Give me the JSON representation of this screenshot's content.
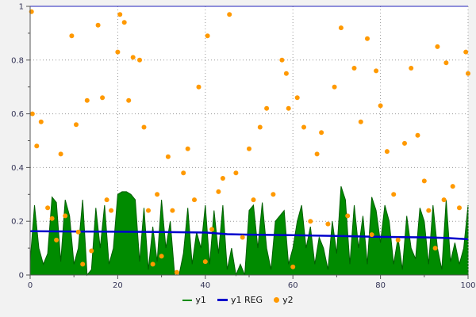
{
  "chart_data": {
    "type": "combo",
    "title": "",
    "xlabel": "",
    "ylabel": "",
    "xlim": [
      0,
      100
    ],
    "ylim": [
      0,
      1
    ],
    "x_ticks": [
      0,
      20,
      40,
      60,
      80,
      100
    ],
    "x_tick_labels": [
      "0",
      "20",
      "40",
      "60",
      "80",
      "100"
    ],
    "y_ticks": [
      0,
      0.2,
      0.4,
      0.6,
      0.8,
      1
    ],
    "y_tick_labels": [
      "0",
      "0.2",
      "0.4",
      "0.6",
      "0.8",
      "1"
    ],
    "grid": true,
    "legend_position": "bottom-center",
    "colors": {
      "page_background": "#f2f2f2",
      "plot_background": "#ffffff",
      "grid": "#999999",
      "axis": "#555555",
      "top_border": "#2222bb",
      "text": "#333355",
      "y1": "#008b00",
      "y1_stroke": "#005f00",
      "y1_reg": "#0000cc",
      "y2": "#ff9900"
    },
    "series": [
      {
        "name": "y1",
        "type": "area",
        "x_start": 0,
        "x_step": 1,
        "values": [
          0.05,
          0.26,
          0.1,
          0.04,
          0.08,
          0.29,
          0.27,
          0.05,
          0.28,
          0.22,
          0.04,
          0.1,
          0.28,
          0.0,
          0.02,
          0.25,
          0.1,
          0.26,
          0.04,
          0.1,
          0.3,
          0.31,
          0.31,
          0.3,
          0.28,
          0.05,
          0.25,
          0.02,
          0.18,
          0.05,
          0.28,
          0.1,
          0.2,
          0.0,
          0.0,
          0.08,
          0.25,
          0.04,
          0.16,
          0.1,
          0.26,
          0.04,
          0.24,
          0.08,
          0.26,
          0.02,
          0.1,
          0.0,
          0.04,
          0.0,
          0.24,
          0.26,
          0.1,
          0.27,
          0.1,
          0.02,
          0.2,
          0.22,
          0.24,
          0.04,
          0.1,
          0.2,
          0.26,
          0.1,
          0.18,
          0.04,
          0.14,
          0.1,
          0.02,
          0.2,
          0.08,
          0.33,
          0.28,
          0.04,
          0.26,
          0.1,
          0.22,
          0.04,
          0.29,
          0.24,
          0.12,
          0.26,
          0.2,
          0.04,
          0.14,
          0.02,
          0.22,
          0.1,
          0.06,
          0.25,
          0.2,
          0.04,
          0.26,
          0.1,
          0.02,
          0.28,
          0.05,
          0.12,
          0.04,
          0.1,
          0.26
        ]
      },
      {
        "name": "y1 REG",
        "type": "line",
        "points": [
          [
            0,
            0.163
          ],
          [
            10,
            0.162
          ],
          [
            20,
            0.161
          ],
          [
            30,
            0.16
          ],
          [
            40,
            0.158
          ],
          [
            45,
            0.152
          ],
          [
            50,
            0.15
          ],
          [
            60,
            0.148
          ],
          [
            70,
            0.145
          ],
          [
            80,
            0.142
          ],
          [
            90,
            0.14
          ],
          [
            95,
            0.138
          ],
          [
            100,
            0.133
          ]
        ]
      },
      {
        "name": "y2",
        "type": "scatter",
        "points": [
          [
            0.3,
            0.98
          ],
          [
            0.5,
            0.6
          ],
          [
            1.5,
            0.48
          ],
          [
            2.5,
            0.57
          ],
          [
            4,
            0.25
          ],
          [
            5,
            0.21
          ],
          [
            6,
            0.13
          ],
          [
            7,
            0.45
          ],
          [
            8,
            0.22
          ],
          [
            9.5,
            0.89
          ],
          [
            10.5,
            0.56
          ],
          [
            11,
            0.16
          ],
          [
            12,
            0.04
          ],
          [
            13,
            0.65
          ],
          [
            14,
            0.09
          ],
          [
            15.5,
            0.93
          ],
          [
            16.5,
            0.66
          ],
          [
            17.5,
            0.28
          ],
          [
            18.5,
            0.24
          ],
          [
            20,
            0.83
          ],
          [
            20.5,
            0.97
          ],
          [
            21.5,
            0.94
          ],
          [
            22.5,
            0.65
          ],
          [
            23.5,
            0.81
          ],
          [
            25,
            0.8
          ],
          [
            26,
            0.55
          ],
          [
            27,
            0.24
          ],
          [
            28,
            0.04
          ],
          [
            29,
            0.3
          ],
          [
            30,
            0.07
          ],
          [
            31.5,
            0.44
          ],
          [
            32.5,
            0.24
          ],
          [
            33.5,
            0.01
          ],
          [
            35,
            0.38
          ],
          [
            36,
            0.47
          ],
          [
            37.5,
            0.28
          ],
          [
            38.5,
            0.7
          ],
          [
            40,
            0.05
          ],
          [
            40.5,
            0.89
          ],
          [
            41.5,
            0.17
          ],
          [
            43,
            0.31
          ],
          [
            44,
            0.36
          ],
          [
            45.5,
            0.97
          ],
          [
            47,
            0.38
          ],
          [
            48.5,
            0.14
          ],
          [
            50,
            0.47
          ],
          [
            51,
            0.28
          ],
          [
            52.5,
            0.55
          ],
          [
            54,
            0.62
          ],
          [
            55.5,
            0.3
          ],
          [
            57.5,
            0.8
          ],
          [
            58.5,
            0.75
          ],
          [
            59,
            0.62
          ],
          [
            60,
            0.03
          ],
          [
            61,
            0.66
          ],
          [
            62.5,
            0.55
          ],
          [
            64,
            0.2
          ],
          [
            65.5,
            0.45
          ],
          [
            66.5,
            0.53
          ],
          [
            68,
            0.19
          ],
          [
            69.5,
            0.7
          ],
          [
            71,
            0.92
          ],
          [
            72.5,
            0.22
          ],
          [
            74,
            0.77
          ],
          [
            75.5,
            0.57
          ],
          [
            77,
            0.88
          ],
          [
            78,
            0.15
          ],
          [
            79,
            0.76
          ],
          [
            80,
            0.63
          ],
          [
            81.5,
            0.46
          ],
          [
            83,
            0.3
          ],
          [
            84,
            0.13
          ],
          [
            85.5,
            0.49
          ],
          [
            87,
            0.77
          ],
          [
            88.5,
            0.52
          ],
          [
            90,
            0.35
          ],
          [
            91,
            0.24
          ],
          [
            92.5,
            0.1
          ],
          [
            93,
            0.85
          ],
          [
            94.5,
            0.28
          ],
          [
            95,
            0.79
          ],
          [
            96.5,
            0.33
          ],
          [
            98,
            0.25
          ],
          [
            99.5,
            0.83
          ],
          [
            100,
            0.75
          ]
        ]
      }
    ],
    "legend": [
      {
        "label": "y1",
        "color": "#008b00",
        "marker": "line"
      },
      {
        "label": "y1 REG",
        "color": "#0000cc",
        "marker": "thick-line"
      },
      {
        "label": "y2",
        "color": "#ff9900",
        "marker": "dot"
      }
    ]
  }
}
